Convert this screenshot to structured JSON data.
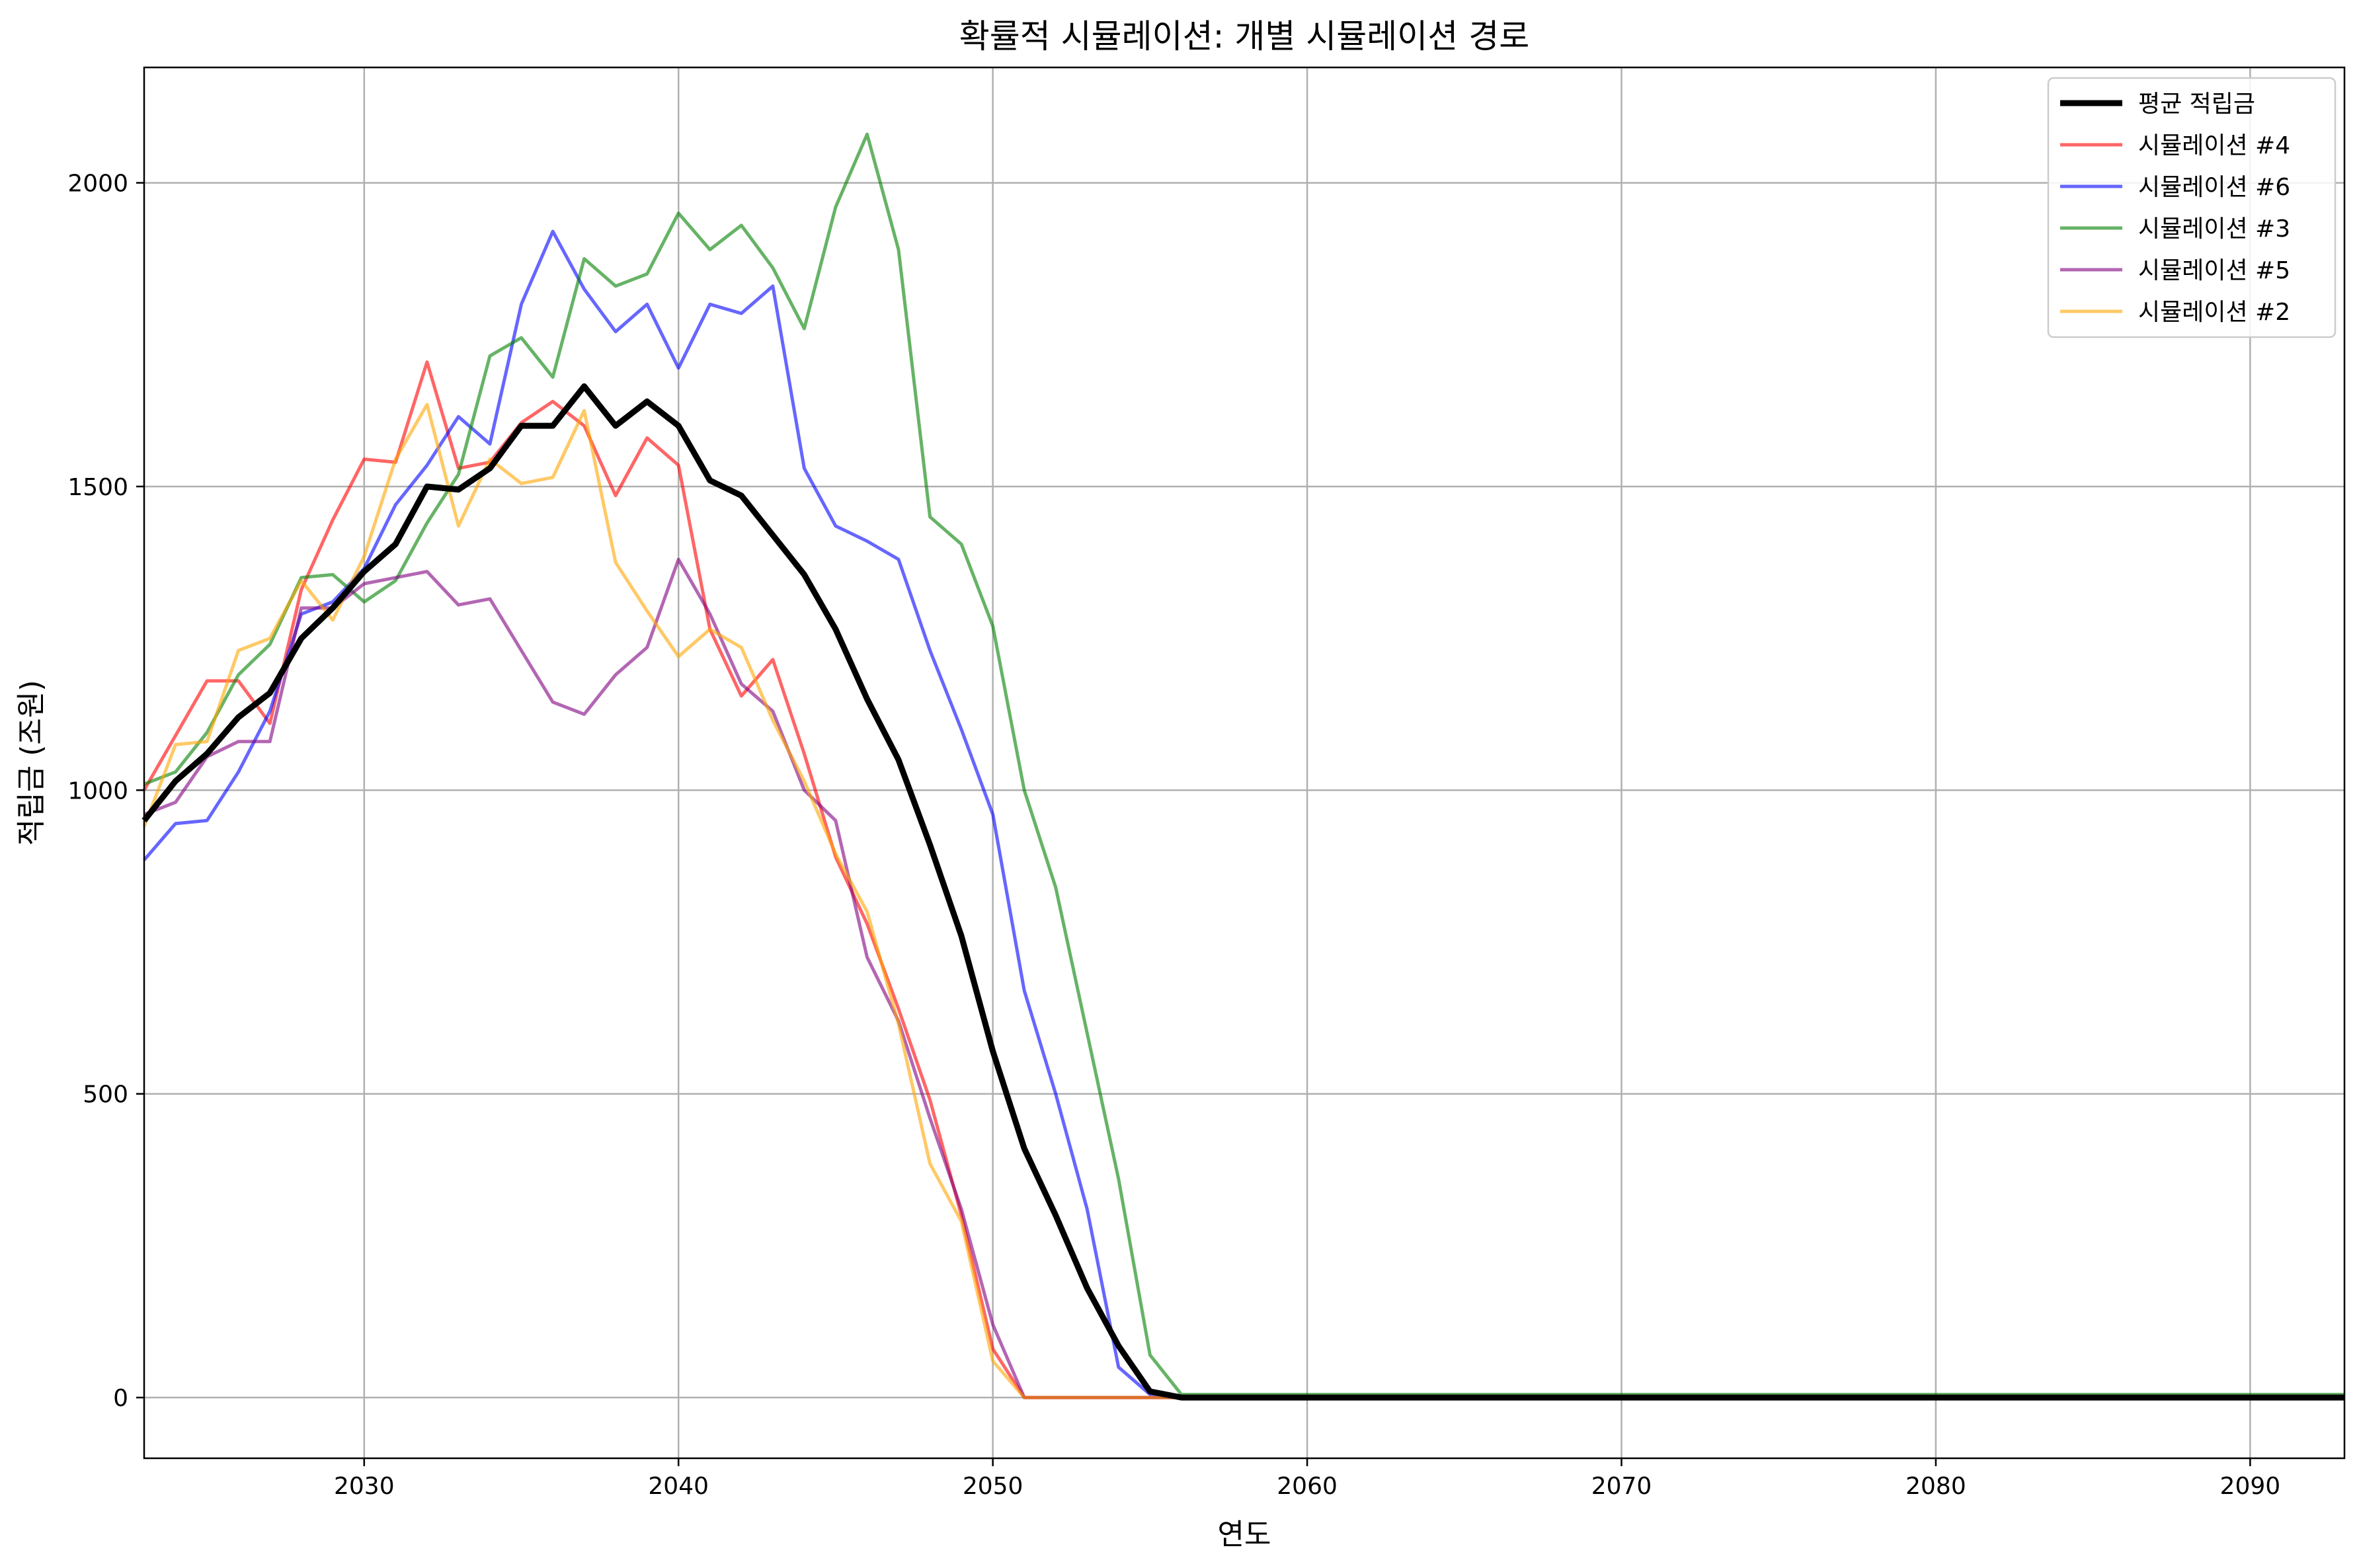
{
  "chart_data": {
    "type": "line",
    "title": "확률적 시뮬레이션: 개별 시뮬레이션 경로",
    "xlabel": "연도",
    "ylabel": "적립금 (조원)",
    "xlim": [
      2023,
      2093
    ],
    "ylim": [
      -100,
      2190
    ],
    "xticks": [
      2030,
      2040,
      2050,
      2060,
      2070,
      2080,
      2090
    ],
    "yticks": [
      0,
      500,
      1000,
      1500,
      2000
    ],
    "grid": true,
    "legend_position": "top-right",
    "series": [
      {
        "name": "평균 적립금",
        "color": "#000000",
        "width": 9,
        "opacity": 1,
        "x": [
          2023,
          2024,
          2025,
          2026,
          2027,
          2028,
          2029,
          2030,
          2031,
          2032,
          2033,
          2034,
          2035,
          2036,
          2037,
          2038,
          2039,
          2040,
          2041,
          2042,
          2043,
          2044,
          2045,
          2046,
          2047,
          2048,
          2049,
          2050,
          2051,
          2052,
          2053,
          2054,
          2055,
          2056,
          2093
        ],
        "y": [
          950,
          1015,
          1060,
          1120,
          1160,
          1250,
          1300,
          1360,
          1405,
          1500,
          1495,
          1530,
          1600,
          1600,
          1665,
          1600,
          1640,
          1600,
          1510,
          1485,
          1420,
          1355,
          1265,
          1150,
          1050,
          910,
          760,
          570,
          410,
          300,
          180,
          85,
          10,
          0,
          0
        ]
      },
      {
        "name": "시뮬레이션 #4",
        "color": "#ff0000",
        "width": 5,
        "opacity": 0.6,
        "x": [
          2023,
          2024,
          2025,
          2026,
          2027,
          2028,
          2029,
          2030,
          2031,
          2032,
          2033,
          2034,
          2035,
          2036,
          2037,
          2038,
          2039,
          2040,
          2041,
          2042,
          2043,
          2044,
          2045,
          2046,
          2047,
          2048,
          2049,
          2050,
          2051,
          2093
        ],
        "y": [
          1000,
          1090,
          1180,
          1180,
          1110,
          1330,
          1445,
          1545,
          1540,
          1705,
          1530,
          1540,
          1605,
          1640,
          1600,
          1485,
          1580,
          1535,
          1265,
          1155,
          1215,
          1060,
          890,
          780,
          640,
          490,
          300,
          80,
          0,
          0
        ]
      },
      {
        "name": "시뮬레이션 #6",
        "color": "#0000ff",
        "width": 5,
        "opacity": 0.6,
        "x": [
          2023,
          2024,
          2025,
          2026,
          2027,
          2028,
          2029,
          2030,
          2031,
          2032,
          2033,
          2034,
          2035,
          2036,
          2037,
          2038,
          2039,
          2040,
          2041,
          2042,
          2043,
          2044,
          2045,
          2046,
          2047,
          2048,
          2049,
          2050,
          2051,
          2052,
          2053,
          2054,
          2055,
          2056,
          2093
        ],
        "y": [
          885,
          945,
          950,
          1030,
          1130,
          1290,
          1310,
          1365,
          1470,
          1535,
          1615,
          1570,
          1800,
          1920,
          1825,
          1755,
          1800,
          1695,
          1800,
          1785,
          1830,
          1530,
          1435,
          1410,
          1380,
          1230,
          1100,
          960,
          670,
          500,
          310,
          50,
          5,
          0,
          0
        ]
      },
      {
        "name": "시뮬레이션 #3",
        "color": "#008000",
        "width": 5,
        "opacity": 0.6,
        "x": [
          2023,
          2024,
          2025,
          2026,
          2027,
          2028,
          2029,
          2030,
          2031,
          2032,
          2033,
          2034,
          2035,
          2036,
          2037,
          2038,
          2039,
          2040,
          2041,
          2042,
          2043,
          2044,
          2045,
          2046,
          2047,
          2048,
          2049,
          2050,
          2051,
          2052,
          2053,
          2054,
          2055,
          2056,
          2093
        ],
        "y": [
          1010,
          1030,
          1095,
          1190,
          1240,
          1350,
          1355,
          1310,
          1345,
          1440,
          1520,
          1715,
          1745,
          1680,
          1875,
          1830,
          1850,
          1950,
          1890,
          1930,
          1860,
          1760,
          1960,
          2080,
          1890,
          1450,
          1405,
          1270,
          1000,
          840,
          600,
          360,
          70,
          5,
          5
        ]
      },
      {
        "name": "시뮬레이션 #5",
        "color": "#800080",
        "width": 5,
        "opacity": 0.6,
        "x": [
          2023,
          2024,
          2025,
          2026,
          2027,
          2028,
          2029,
          2030,
          2031,
          2032,
          2033,
          2034,
          2035,
          2036,
          2037,
          2038,
          2039,
          2040,
          2041,
          2042,
          2043,
          2044,
          2045,
          2046,
          2047,
          2048,
          2049,
          2050,
          2051,
          2093
        ],
        "y": [
          960,
          980,
          1055,
          1080,
          1080,
          1300,
          1300,
          1340,
          1350,
          1360,
          1305,
          1315,
          1230,
          1145,
          1125,
          1190,
          1235,
          1380,
          1290,
          1175,
          1130,
          1000,
          950,
          725,
          620,
          460,
          310,
          120,
          0,
          0
        ]
      },
      {
        "name": "시뮬레이션 #2",
        "color": "#ffa500",
        "width": 5,
        "opacity": 0.6,
        "x": [
          2023,
          2024,
          2025,
          2026,
          2027,
          2028,
          2029,
          2030,
          2031,
          2032,
          2033,
          2034,
          2035,
          2036,
          2037,
          2038,
          2039,
          2040,
          2041,
          2042,
          2043,
          2044,
          2045,
          2046,
          2047,
          2048,
          2049,
          2050,
          2051,
          2093
        ],
        "y": [
          940,
          1075,
          1080,
          1230,
          1250,
          1345,
          1280,
          1385,
          1545,
          1635,
          1435,
          1545,
          1505,
          1515,
          1625,
          1375,
          1295,
          1220,
          1265,
          1235,
          1115,
          1015,
          895,
          800,
          615,
          385,
          290,
          60,
          0,
          0
        ]
      }
    ]
  }
}
